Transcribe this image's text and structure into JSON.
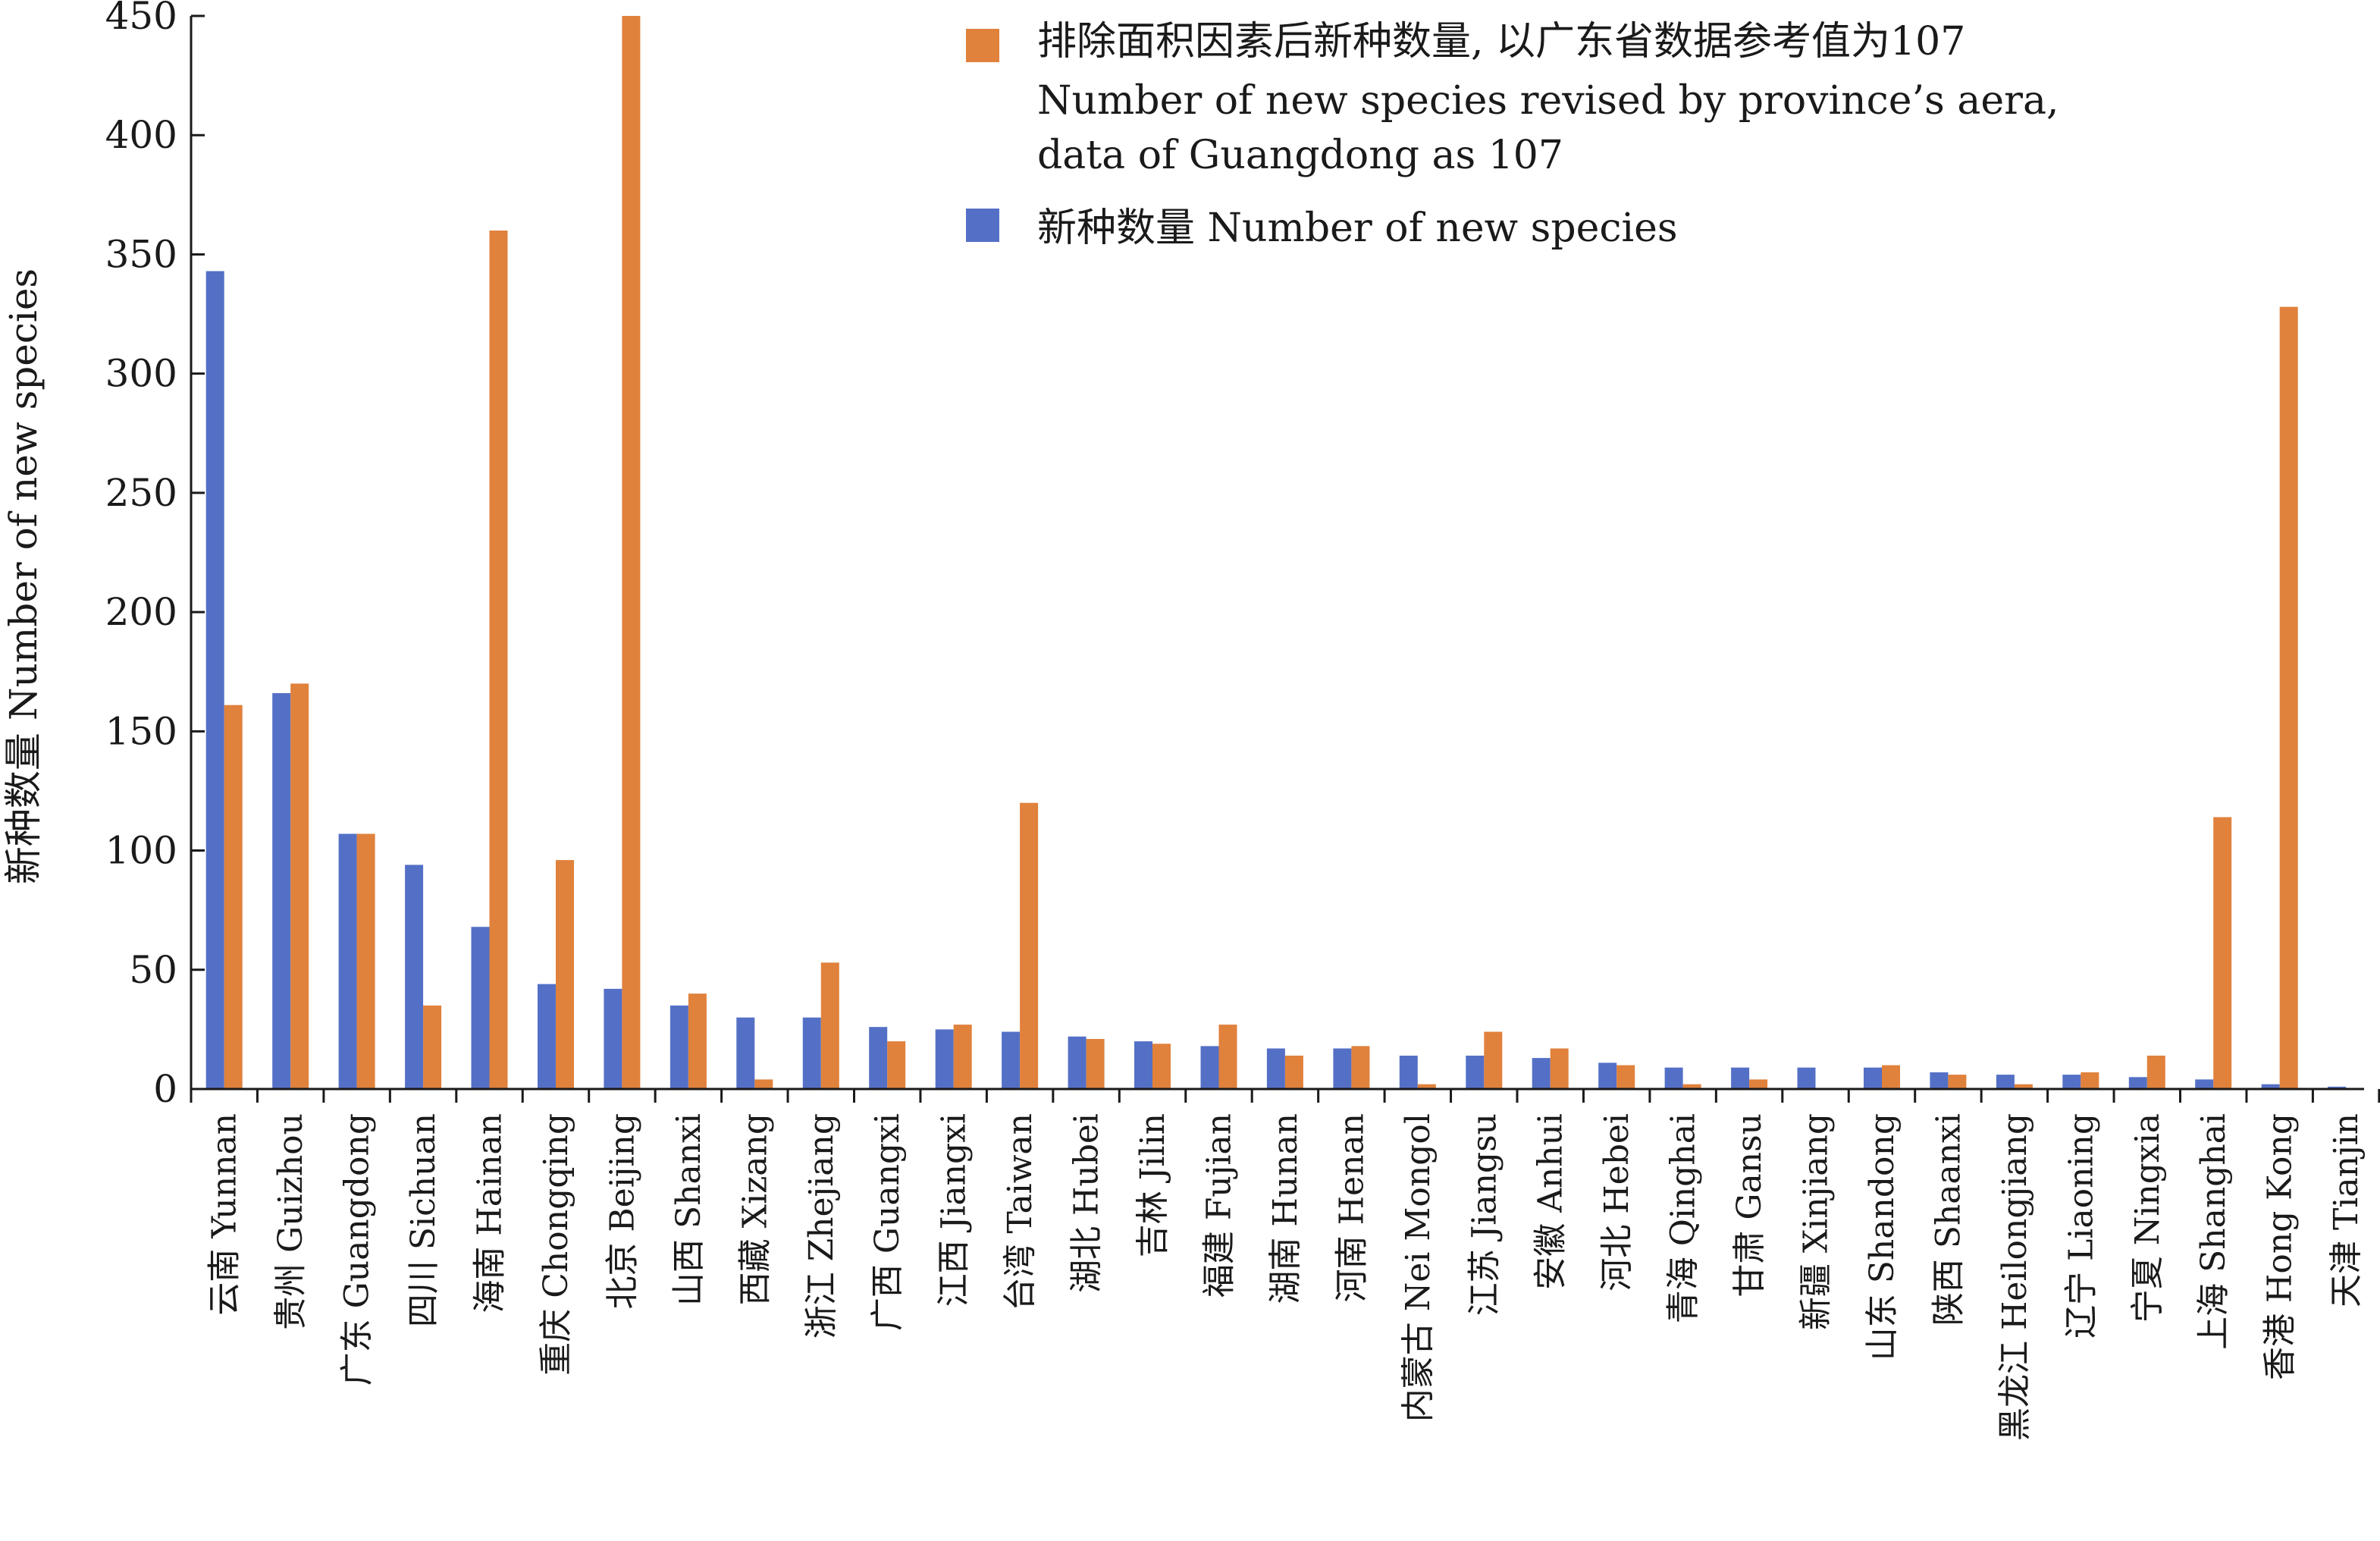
{
  "chart_data": {
    "type": "bar",
    "title": "",
    "xlabel": "",
    "ylabel": "新种数量 Number of new species",
    "ylim": [
      0,
      450
    ],
    "yticks": [
      0,
      50,
      100,
      150,
      200,
      250,
      300,
      350,
      400,
      450
    ],
    "grid": false,
    "legend_position": "top-right",
    "categories": [
      "云南 Yunnan",
      "贵州 Guizhou",
      "广东 Guangdong",
      "四川 Sichuan",
      "海南 Hainan",
      "重庆 Chongqing",
      "北京 Beijing",
      "山西 Shanxi",
      "西藏 Xizang",
      "浙江 Zhejiang",
      "广西 Guangxi",
      "江西 Jiangxi",
      "台湾 Taiwan",
      "湖北 Hubei",
      "吉林 Jilin",
      "福建 Fujian",
      "湖南 Hunan",
      "河南 Henan",
      "内蒙古 Nei Mongol",
      "江苏 Jiangsu",
      "安徽 Anhui",
      "河北 Hebei",
      "青海 Qinghai",
      "甘肃 Gansu",
      "新疆 Xinjiang",
      "山东 Shandong",
      "陕西 Shaanxi",
      "黑龙江 Heilongjiang",
      "辽宁 Liaoning",
      "宁夏 Ningxia",
      "上海 Shanghai",
      "香港 Hong Kong",
      "天津 Tianjin"
    ],
    "series": [
      {
        "name": "新种数量 Number of new species",
        "color": "#5470c6",
        "values": [
          343,
          166,
          107,
          94,
          68,
          44,
          42,
          35,
          30,
          30,
          26,
          25,
          24,
          22,
          20,
          18,
          17,
          17,
          14,
          14,
          13,
          11,
          9,
          9,
          9,
          9,
          7,
          6,
          6,
          5,
          4,
          2,
          1
        ]
      },
      {
        "name": "排除面积因素后新种数量, 以广东省数据参考值为107 Number of new species revised by province’s aera, data of Guangdong as 107",
        "color": "#e0813c",
        "values": [
          161,
          170,
          107,
          35,
          360,
          96,
          450,
          40,
          4,
          53,
          20,
          27,
          120,
          21,
          19,
          27,
          14,
          18,
          2,
          24,
          17,
          10,
          2,
          4,
          0,
          10,
          6,
          2,
          7,
          14,
          114,
          328,
          0
        ]
      }
    ]
  },
  "legend": {
    "orange_line1": "排除面积因素后新种数量, 以广东省数据参考值为107",
    "orange_line2": "Number of new species revised by province’s aera,",
    "orange_line3": "data of Guangdong as 107",
    "blue_line1": "新种数量 Number of new species"
  }
}
